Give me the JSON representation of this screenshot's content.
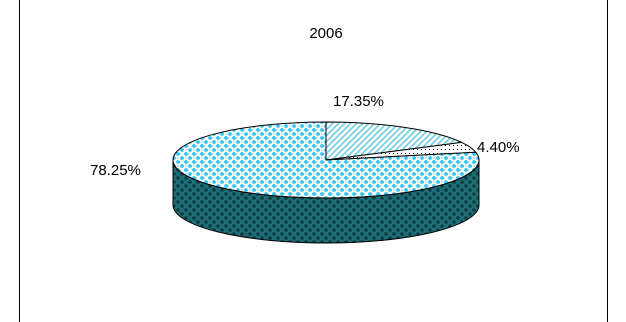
{
  "chart_data": {
    "type": "pie",
    "title": "2006",
    "is_3d": true,
    "slices": [
      {
        "value": 17.35,
        "label": "17.35%",
        "pattern": "diagonal-hatch",
        "color": "#7fd8e8"
      },
      {
        "value": 4.4,
        "label": "4.40%",
        "pattern": "dots",
        "color": "#000000"
      },
      {
        "value": 78.25,
        "label": "78.25%",
        "pattern": "checker-dots",
        "color": "#3cc8f0",
        "side_color": "#1f6f78"
      }
    ]
  }
}
